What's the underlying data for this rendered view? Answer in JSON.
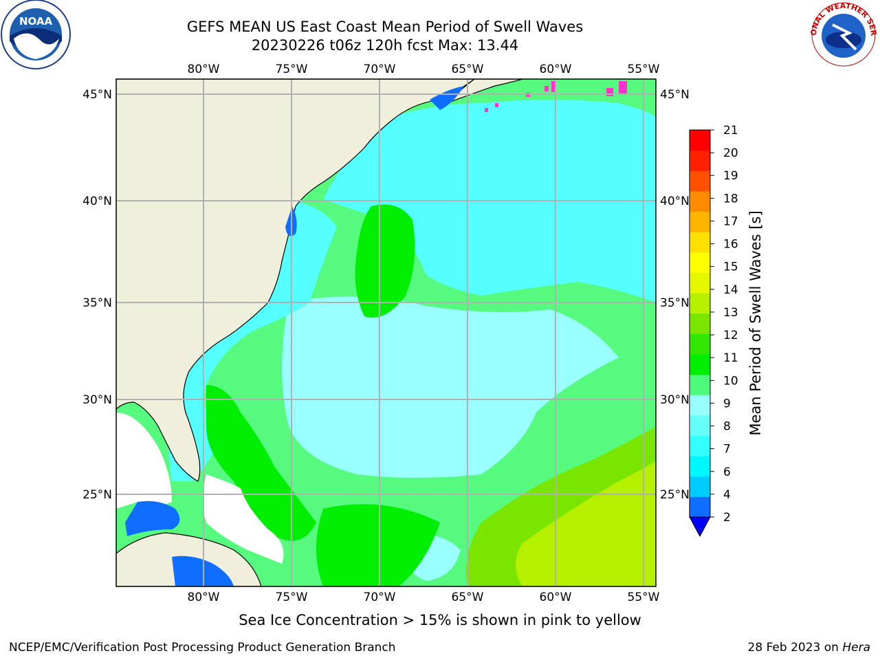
{
  "title_line1": "GEFS MEAN US East Coast Mean Period of Swell Waves",
  "title_line2": "20230226 t06z 120h fcst   Max: 13.44",
  "lon_labels": [
    "80°W",
    "75°W",
    "70°W",
    "65°W",
    "60°W",
    "55°W"
  ],
  "lat_labels": [
    "45°N",
    "40°N",
    "35°N",
    "30°N",
    "25°N"
  ],
  "colorbar": {
    "title": "Mean Period of Swell Waves [s]",
    "ticks": [
      "2",
      "4",
      "6",
      "7",
      "8",
      "9",
      "10",
      "11",
      "12",
      "13",
      "14",
      "15",
      "16",
      "17",
      "18",
      "19",
      "20",
      "21"
    ],
    "colors": [
      "#0f6dff",
      "#00ccff",
      "#00f7ff",
      "#33ffff",
      "#66fffa",
      "#99ffff",
      "#4dfa7a",
      "#00ee00",
      "#33e600",
      "#7ae600",
      "#b5f000",
      "#e6f800",
      "#ffff00",
      "#ffe000",
      "#ffb400",
      "#ff8c00",
      "#ff5000",
      "#ff2000",
      "#ff0000"
    ],
    "extend_color": "#0000ff"
  },
  "ice_note": "Sea Ice Concentration > 15% is shown in pink to yellow",
  "footer_left": "NCEP/EMC/Verification Post Processing Product Generation Branch",
  "footer_date": "28 Feb 2023 on ",
  "footer_machine": "Hera",
  "logos": {
    "left": "NOAA",
    "right": "NATIONAL WEATHER SERVICE"
  }
}
